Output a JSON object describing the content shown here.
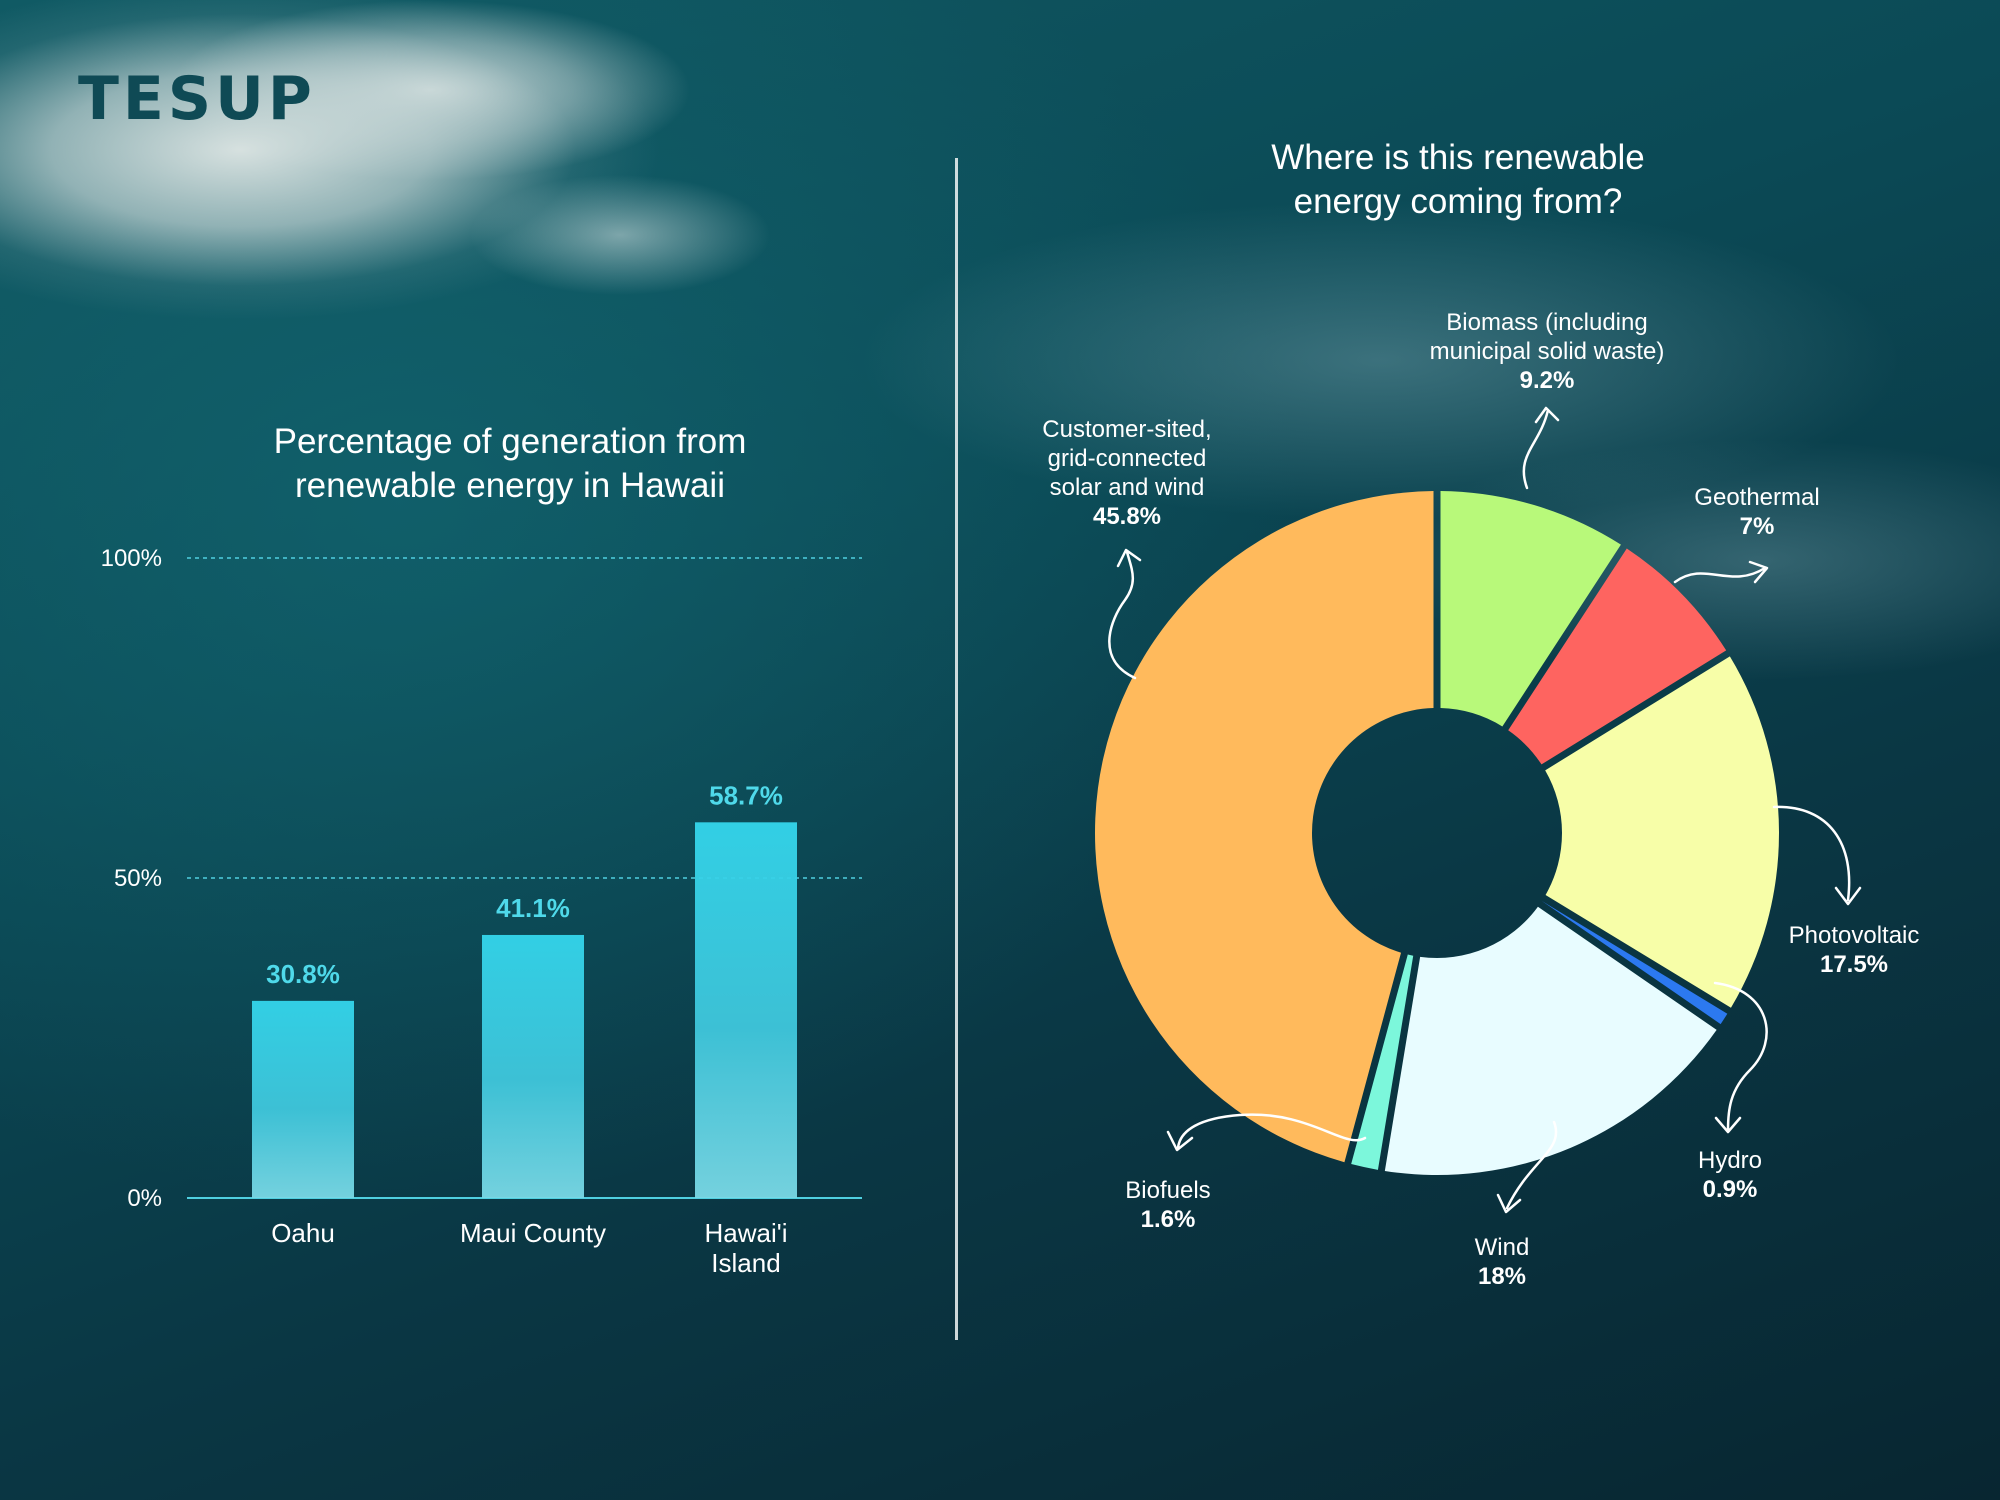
{
  "logo": "TESUP",
  "colors": {
    "bar_top": "#34d6ec",
    "bar_bottom": "#7ad9e6",
    "bar_value_label": "#4fd9ea",
    "divider": "#f0f5f5"
  },
  "chart_data": [
    {
      "type": "bar",
      "title_lines": [
        "Percentage of generation from",
        "renewable energy in Hawaii"
      ],
      "categories": [
        [
          "Oahu"
        ],
        [
          "Maui County"
        ],
        [
          "Hawai'i",
          "Island"
        ]
      ],
      "values": [
        30.8,
        41.1,
        58.7
      ],
      "value_labels": [
        "30.8%",
        "41.1%",
        "58.7%"
      ],
      "ylim": [
        0,
        100
      ],
      "ticks": [
        {
          "value": 0,
          "label": "0%"
        },
        {
          "value": 50,
          "label": "50%"
        },
        {
          "value": 100,
          "label": "100%"
        }
      ],
      "grid": "dashed lines at 50% and 100%"
    },
    {
      "type": "pie",
      "style": "donut",
      "title_lines": [
        "Where is this renewable",
        "energy coming from?"
      ],
      "slices": [
        {
          "label_lines": [
            "Biomass (including",
            "municipal solid waste)"
          ],
          "value": 9.2,
          "value_label": "9.2%",
          "color": "#b8f97a"
        },
        {
          "label_lines": [
            "Geothermal"
          ],
          "value": 7,
          "value_label": "7%",
          "color": "#fe6460"
        },
        {
          "label_lines": [
            "Photovoltaic"
          ],
          "value": 17.5,
          "value_label": "17.5%",
          "color": "#f7fea8"
        },
        {
          "label_lines": [
            "Hydro"
          ],
          "value": 0.9,
          "value_label": "0.9%",
          "color": "#2c79f0"
        },
        {
          "label_lines": [
            "Wind"
          ],
          "value": 18,
          "value_label": "18%",
          "color": "#e8fcff"
        },
        {
          "label_lines": [
            "Biofuels"
          ],
          "value": 1.6,
          "value_label": "1.6%",
          "color": "#7cf7db"
        },
        {
          "label_lines": [
            "Customer-sited,",
            "grid-connected",
            "solar and wind"
          ],
          "value": 45.8,
          "value_label": "45.8%",
          "color": "#ffba5c"
        }
      ]
    }
  ]
}
